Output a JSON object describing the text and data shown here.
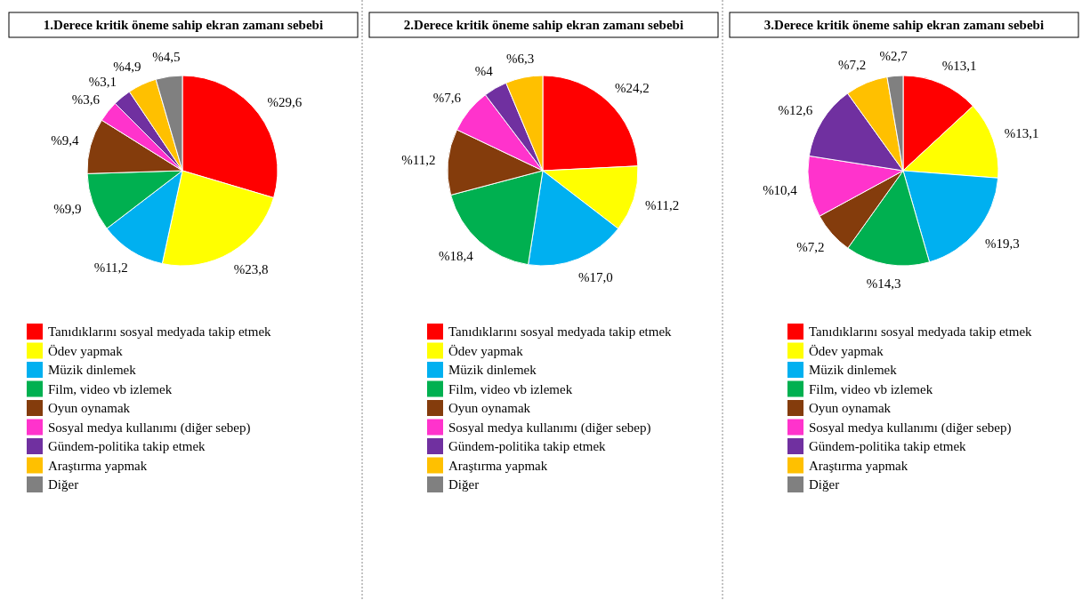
{
  "chart_data": [
    {
      "type": "pie",
      "title": "1.Derece kritik öneme sahip ekran zamanı sebebi",
      "categories": [
        "Tanıdıklarını sosyal medyada takip etmek",
        "Ödev yapmak",
        "Müzik dinlemek",
        "Film, video vb izlemek",
        "Oyun oynamak",
        "Sosyal medya kullanımı (diğer sebep)",
        "Gündem-politika takip etmek",
        "Araştırma yapmak",
        "Diğer"
      ],
      "values": [
        29.6,
        23.8,
        11.2,
        9.9,
        9.4,
        3.6,
        3.1,
        4.9,
        4.5
      ],
      "value_labels": [
        "%29,6",
        "%23,8",
        "%11,2",
        "%9,9",
        "%9,4",
        "%3,6",
        "%3,1",
        "%4,9",
        "%4,5"
      ],
      "colors": [
        "#ff0000",
        "#ffff00",
        "#00b0f0",
        "#00b050",
        "#843c0c",
        "#ff33cc",
        "#7030a0",
        "#ffc000",
        "#808080"
      ],
      "legend": "bottom"
    },
    {
      "type": "pie",
      "title": "2.Derece kritik öneme sahip ekran zamanı sebebi",
      "categories": [
        "Tanıdıklarını sosyal medyada takip etmek",
        "Ödev yapmak",
        "Müzik dinlemek",
        "Film, video vb izlemek",
        "Oyun oynamak",
        "Sosyal medya kullanımı (diğer sebep)",
        "Gündem-politika takip etmek",
        "Araştırma yapmak",
        "Diğer"
      ],
      "values": [
        24.2,
        11.2,
        17.0,
        18.4,
        11.2,
        7.6,
        4,
        6.3,
        null
      ],
      "value_labels": [
        "%24,2",
        "%11,2",
        "%17,0",
        "%18,4",
        "%11,2",
        "%7,6",
        "%4",
        "%6,3",
        null
      ],
      "colors": [
        "#ff0000",
        "#ffff00",
        "#00b0f0",
        "#00b050",
        "#843c0c",
        "#ff33cc",
        "#7030a0",
        "#ffc000",
        "#808080"
      ],
      "legend": "bottom"
    },
    {
      "type": "pie",
      "title": "3.Derece kritik öneme sahip ekran zamanı sebebi",
      "categories": [
        "Tanıdıklarını sosyal medyada takip etmek",
        "Ödev yapmak",
        "Müzik dinlemek",
        "Film, video vb izlemek",
        "Oyun oynamak",
        "Sosyal medya kullanımı (diğer sebep)",
        "Gündem-politika takip etmek",
        "Araştırma yapmak",
        "Diğer"
      ],
      "values": [
        13.1,
        13.1,
        19.3,
        14.3,
        7.2,
        10.4,
        12.6,
        7.2,
        2.7
      ],
      "value_labels": [
        "%13,1",
        "%13,1",
        "%19,3",
        "%14,3",
        "%7,2",
        "%10,4",
        "%12,6",
        "%7,2",
        "%2,7"
      ],
      "colors": [
        "#ff0000",
        "#ffff00",
        "#00b0f0",
        "#00b050",
        "#843c0c",
        "#ff33cc",
        "#7030a0",
        "#ffc000",
        "#808080"
      ],
      "legend": "bottom"
    }
  ]
}
